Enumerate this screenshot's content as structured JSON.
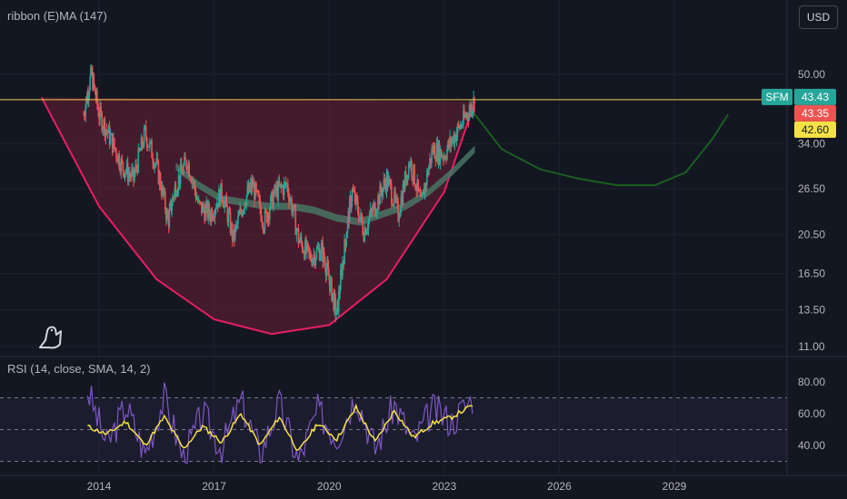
{
  "header": {
    "indicator_label": "ribbon (E)MA (147)",
    "currency_button": "USD"
  },
  "rsi_panel": {
    "label": "RSI (14, close, SMA, 14, 2)",
    "ticks": [
      "80.00",
      "60.00",
      "40.00"
    ]
  },
  "price_axis": {
    "ticks": [
      "50.00",
      "34.00",
      "26.50",
      "20.50",
      "16.50",
      "13.50",
      "11.00"
    ]
  },
  "price_badges": {
    "symbol": "SFM",
    "last": "43.43",
    "second": "43.35",
    "third": "42.60"
  },
  "time_axis": {
    "ticks": [
      "2014",
      "2017",
      "2020",
      "2023",
      "2026",
      "2029"
    ]
  },
  "colors": {
    "background": "#131722",
    "up": "#26a69a",
    "down": "#ef5350",
    "cup_fill": "#6b1f35",
    "cup_stroke": "#e91e63",
    "projection": "#1b5e20",
    "ribbon": "#4a7a68",
    "hline": "#f9c74f",
    "rsi_line": "#7e57c2",
    "rsi_ma": "#f5e146"
  },
  "chart_data": [
    {
      "type": "line",
      "title": "",
      "scale": "log",
      "ylim": [
        11.0,
        50.0
      ],
      "x_ticks": [
        "2014",
        "2017",
        "2020",
        "2023",
        "2026",
        "2029"
      ],
      "y_ticks": [
        50.0,
        34.0,
        26.5,
        20.5,
        16.5,
        13.5,
        11.0
      ],
      "series": [
        {
          "name": "SFM",
          "style": "candles",
          "x": [
            2013.6,
            2013.8,
            2014.0,
            2014.3,
            2014.6,
            2014.9,
            2015.2,
            2015.5,
            2015.8,
            2016.0,
            2016.3,
            2016.6,
            2016.9,
            2017.2,
            2017.5,
            2017.8,
            2018.0,
            2018.3,
            2018.6,
            2018.9,
            2019.2,
            2019.5,
            2019.8,
            2020.0,
            2020.2,
            2020.4,
            2020.6,
            2020.9,
            2021.2,
            2021.5,
            2021.8,
            2022.1,
            2022.4,
            2022.7,
            2023.0,
            2023.3,
            2023.6,
            2023.8
          ],
          "y": [
            40,
            50,
            40,
            35,
            30,
            28,
            36,
            30,
            22,
            27,
            31,
            24,
            23,
            26,
            20,
            25,
            27,
            22,
            26,
            27,
            20,
            18,
            19,
            16,
            13,
            19,
            26,
            21,
            24,
            28,
            23,
            31,
            24,
            33,
            32,
            36,
            40,
            43.43
          ]
        },
        {
          "name": "Ribbon EMA",
          "style": "ribbon",
          "x": [
            2016.0,
            2016.6,
            2017.2,
            2017.8,
            2018.4,
            2019.0,
            2019.6,
            2020.2,
            2020.8,
            2021.4,
            2022.0,
            2022.6,
            2023.2,
            2023.8
          ],
          "y": [
            30,
            27,
            25,
            24.5,
            24,
            24,
            23.5,
            22.5,
            22,
            23,
            24,
            26,
            29,
            33
          ]
        },
        {
          "name": "Cup curve",
          "style": "curve",
          "x": [
            2012.5,
            2014.0,
            2015.5,
            2017.0,
            2018.5,
            2020.0,
            2021.5,
            2023.0,
            2023.8
          ],
          "y": [
            44,
            24,
            16,
            12.8,
            11.8,
            12.4,
            16,
            26,
            43
          ]
        },
        {
          "name": "Projection",
          "style": "curve",
          "x": [
            2023.8,
            2024.5,
            2025.5,
            2026.5,
            2027.5,
            2028.5,
            2029.3,
            2030.0,
            2030.4
          ],
          "y": [
            40,
            33,
            29.5,
            28,
            27,
            27,
            29,
            35,
            40
          ]
        }
      ]
    },
    {
      "type": "line",
      "title": "RSI",
      "ylim": [
        29,
        88
      ],
      "y_ticks": [
        80.0,
        60.0,
        40.0
      ],
      "bands": [
        70,
        30
      ],
      "series": [
        {
          "name": "RSI",
          "x": [
            2013.7,
            2014.2,
            2014.7,
            2015.2,
            2015.7,
            2016.2,
            2016.7,
            2017.2,
            2017.7,
            2018.2,
            2018.7,
            2019.2,
            2019.7,
            2020.2,
            2020.7,
            2021.2,
            2021.7,
            2022.2,
            2022.7,
            2023.2,
            2023.8
          ],
          "y": [
            75,
            40,
            65,
            35,
            70,
            32,
            60,
            38,
            68,
            35,
            66,
            30,
            62,
            45,
            72,
            38,
            66,
            42,
            63,
            55,
            72
          ]
        },
        {
          "name": "RSI MA",
          "x": [
            2013.7,
            2014.2,
            2014.7,
            2015.2,
            2015.7,
            2016.2,
            2016.7,
            2017.2,
            2017.7,
            2018.2,
            2018.7,
            2019.2,
            2019.7,
            2020.2,
            2020.7,
            2021.2,
            2021.7,
            2022.2,
            2022.7,
            2023.2,
            2023.8
          ],
          "y": [
            52,
            47,
            55,
            40,
            58,
            38,
            52,
            42,
            60,
            40,
            58,
            36,
            54,
            44,
            64,
            42,
            62,
            45,
            54,
            58,
            66
          ]
        }
      ]
    }
  ]
}
